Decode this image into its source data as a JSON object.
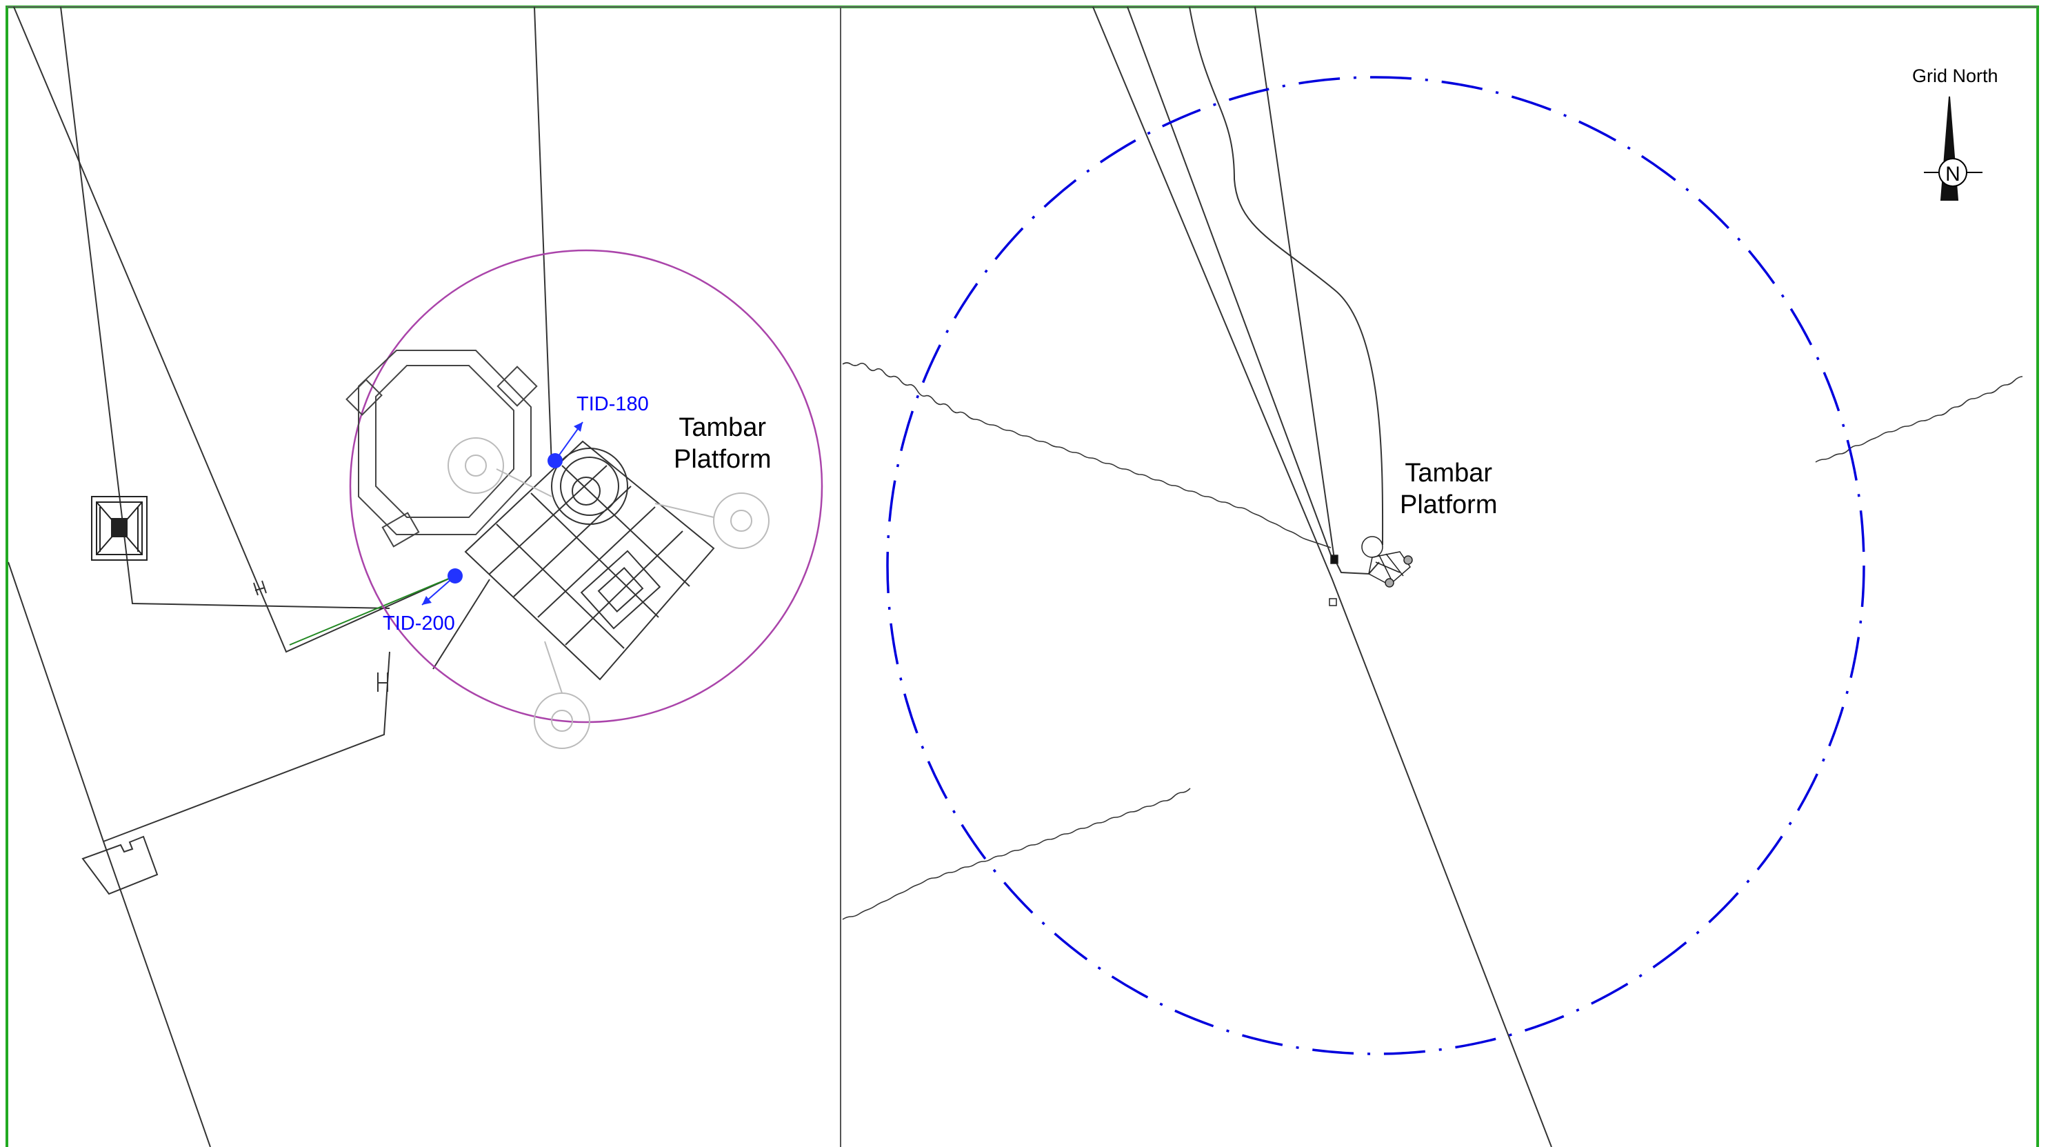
{
  "left_panel": {
    "platform_label_line1": "Tambar",
    "platform_label_line2": "Platform",
    "markers": [
      {
        "id": "TID-180"
      },
      {
        "id": "TID-200"
      }
    ]
  },
  "right_panel": {
    "platform_label_line1": "Tambar",
    "platform_label_line2": "Platform"
  },
  "north_arrow": {
    "label": "Grid North",
    "letter": "N"
  },
  "colors": {
    "frame": "#22aa22",
    "lines": "#333333",
    "zone_circle_left": "#aa44aa",
    "safety_zone": "#0000dd",
    "markers": "#2233ff",
    "faded_structure": "#bbbbbb"
  }
}
